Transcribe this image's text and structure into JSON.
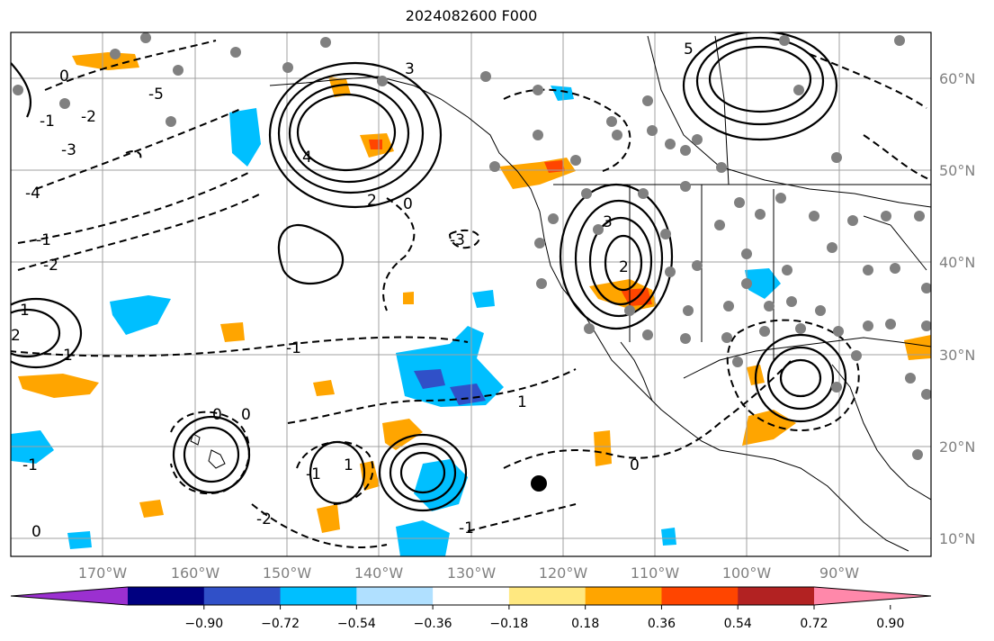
{
  "title": "2024082600 F000",
  "lat_labels": [
    "60°N",
    "50°N",
    "40°N",
    "30°N",
    "20°N",
    "10°N"
  ],
  "lon_labels": [
    "170°W",
    "160°W",
    "150°W",
    "140°W",
    "130°W",
    "120°W",
    "110°W",
    "100°W",
    "90°W"
  ],
  "colorbar": {
    "colors": [
      "#9b30d0",
      "#000080",
      "#3050c8",
      "#00bfff",
      "#b0e0ff",
      "#ffffff",
      "#ffe880",
      "#ffa500",
      "#ff4500",
      "#b22222",
      "#ff88aa"
    ],
    "tick_labels": [
      "−0.90",
      "−0.72",
      "−0.54",
      "−0.36",
      "−0.18",
      "0.18",
      "0.36",
      "0.54",
      "0.72",
      "0.90"
    ]
  },
  "contour_labels": [
    "0",
    "-1",
    "-2",
    "-3",
    "-4",
    "-5",
    "1",
    "2",
    "3",
    "4",
    "5",
    "-1",
    "0",
    "2",
    "-2",
    "1",
    "-1",
    "3",
    "-3",
    "0",
    "0",
    "1",
    "-1",
    "-2",
    "2",
    "0",
    "-1",
    "1",
    "0",
    "-1"
  ]
}
